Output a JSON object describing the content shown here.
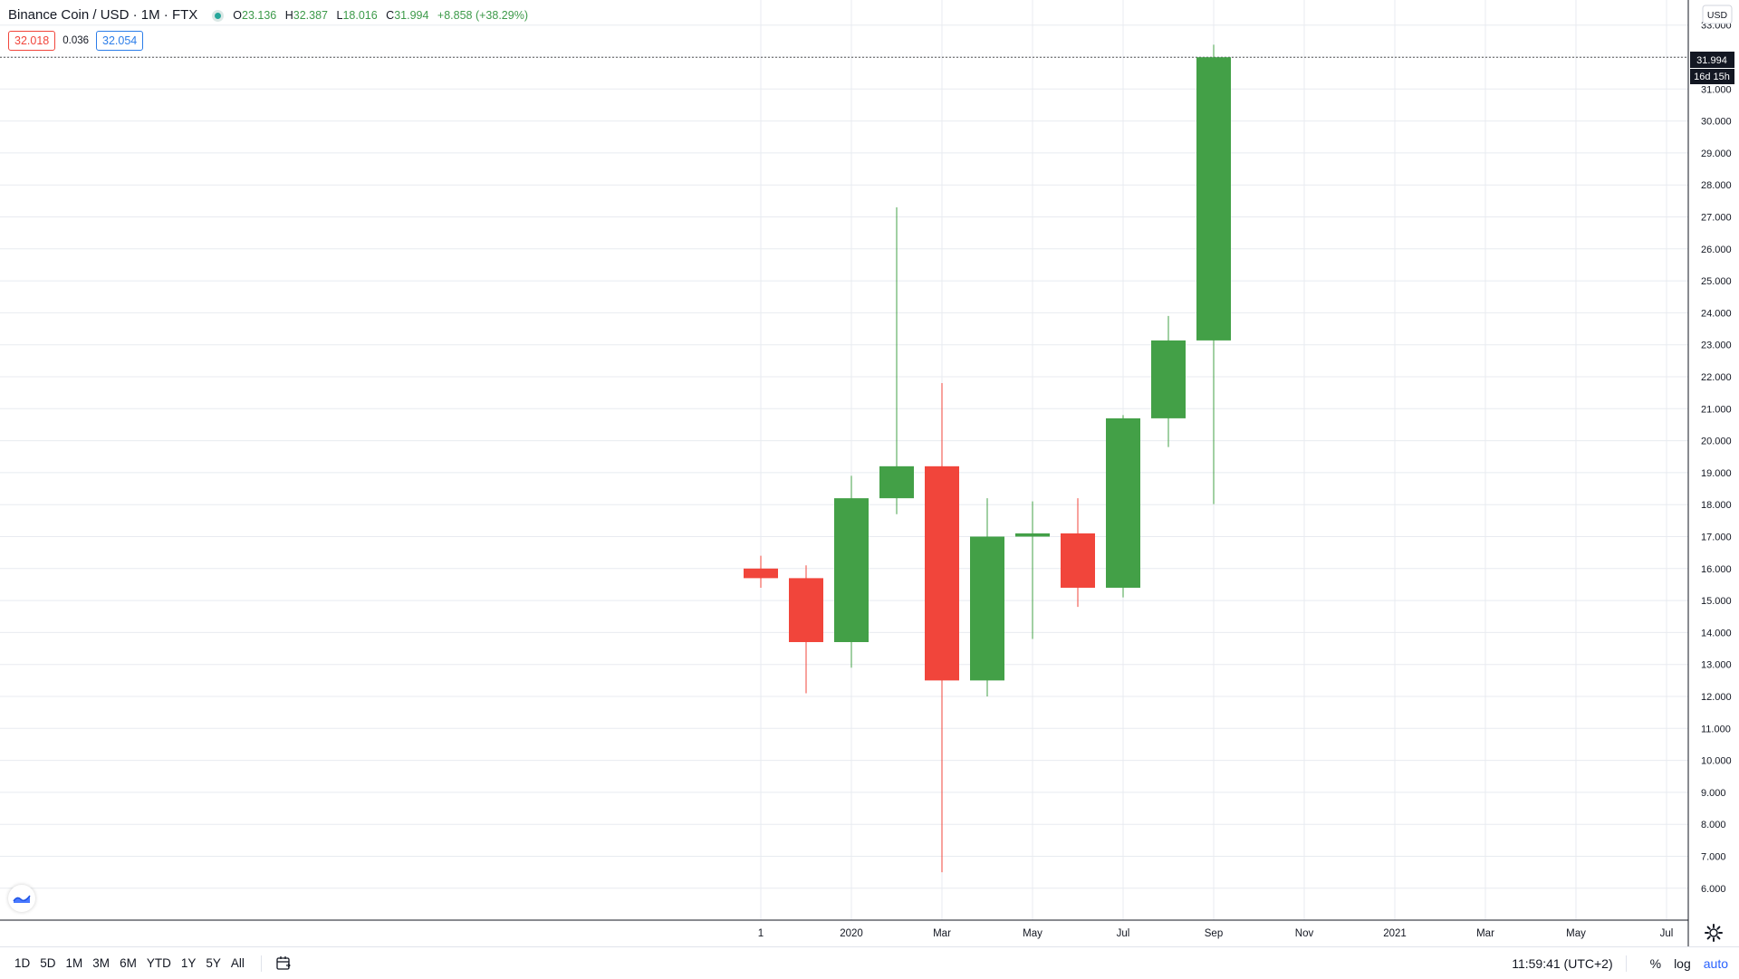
{
  "legend": {
    "symbol": "Binance Coin / USD",
    "interval": "1M",
    "exchange": "FTX",
    "open_label": "O",
    "open": "23.136",
    "high_label": "H",
    "high": "32.387",
    "low_label": "L",
    "low": "18.016",
    "close_label": "C",
    "close": "31.994",
    "change": "+8.858 (+38.29%)",
    "bid": "32.018",
    "spread": "0.036",
    "ask": "32.054"
  },
  "price_axis": {
    "currency": "USD",
    "last_price": "31.994",
    "countdown": "16d 15h"
  },
  "bottom_bar": {
    "ranges": [
      "1D",
      "5D",
      "1M",
      "3M",
      "6M",
      "YTD",
      "1Y",
      "5Y",
      "All"
    ],
    "clock": "11:59:41 (UTC+2)",
    "percent": "%",
    "log": "log",
    "auto": "auto"
  },
  "colors": {
    "up": "#43a047",
    "down": "#f1453b",
    "grid": "#e8ebf0",
    "axis_text": "#131722"
  },
  "chart_data": {
    "type": "candlestick",
    "ylim": [
      5.0,
      34.0
    ],
    "y_ticks": [
      6,
      7,
      8,
      9,
      10,
      11,
      12,
      13,
      14,
      15,
      16,
      17,
      18,
      19,
      20,
      21,
      22,
      23,
      24,
      25,
      26,
      27,
      28,
      29,
      30,
      31,
      32,
      33
    ],
    "y_tick_labels": [
      "6.000",
      "7.000",
      "8.000",
      "9.000",
      "10.000",
      "11.000",
      "12.000",
      "13.000",
      "14.000",
      "15.000",
      "16.000",
      "17.000",
      "18.000",
      "19.000",
      "20.000",
      "21.000",
      "22.000",
      "23.000",
      "24.000",
      "25.000",
      "26.000",
      "27.000",
      "28.000",
      "29.000",
      "30.000",
      "31.000",
      "32.000",
      "33.000"
    ],
    "x_labels": [
      "1",
      "2020",
      "Mar",
      "May",
      "Jul",
      "Sep",
      "Nov",
      "2021",
      "Mar",
      "May",
      "Jul"
    ],
    "x_label_months": [
      "2019-11",
      "2020-01",
      "2020-03",
      "2020-05",
      "2020-07",
      "2020-09",
      "2020-11",
      "2021-01",
      "2021-03",
      "2021-05",
      "2021-07"
    ],
    "candles": [
      {
        "month": "2019-11",
        "open": 16.0,
        "high": 16.4,
        "low": 15.4,
        "close": 15.7
      },
      {
        "month": "2019-12",
        "open": 15.7,
        "high": 16.1,
        "low": 12.1,
        "close": 13.7
      },
      {
        "month": "2020-01",
        "open": 13.7,
        "high": 18.9,
        "low": 12.9,
        "close": 18.2
      },
      {
        "month": "2020-02",
        "open": 18.2,
        "high": 27.3,
        "low": 17.7,
        "close": 19.2
      },
      {
        "month": "2020-03",
        "open": 19.2,
        "high": 21.8,
        "low": 6.5,
        "close": 12.5
      },
      {
        "month": "2020-04",
        "open": 12.5,
        "high": 18.2,
        "low": 12.0,
        "close": 17.0
      },
      {
        "month": "2020-05",
        "open": 17.0,
        "high": 18.1,
        "low": 13.8,
        "close": 17.1
      },
      {
        "month": "2020-06",
        "open": 17.1,
        "high": 18.2,
        "low": 14.8,
        "close": 15.4
      },
      {
        "month": "2020-07",
        "open": 15.4,
        "high": 20.8,
        "low": 15.1,
        "close": 20.7
      },
      {
        "month": "2020-08",
        "open": 20.7,
        "high": 23.9,
        "low": 19.8,
        "close": 23.136
      },
      {
        "month": "2020-09",
        "open": 23.136,
        "high": 32.387,
        "low": 18.016,
        "close": 31.994
      }
    ]
  }
}
